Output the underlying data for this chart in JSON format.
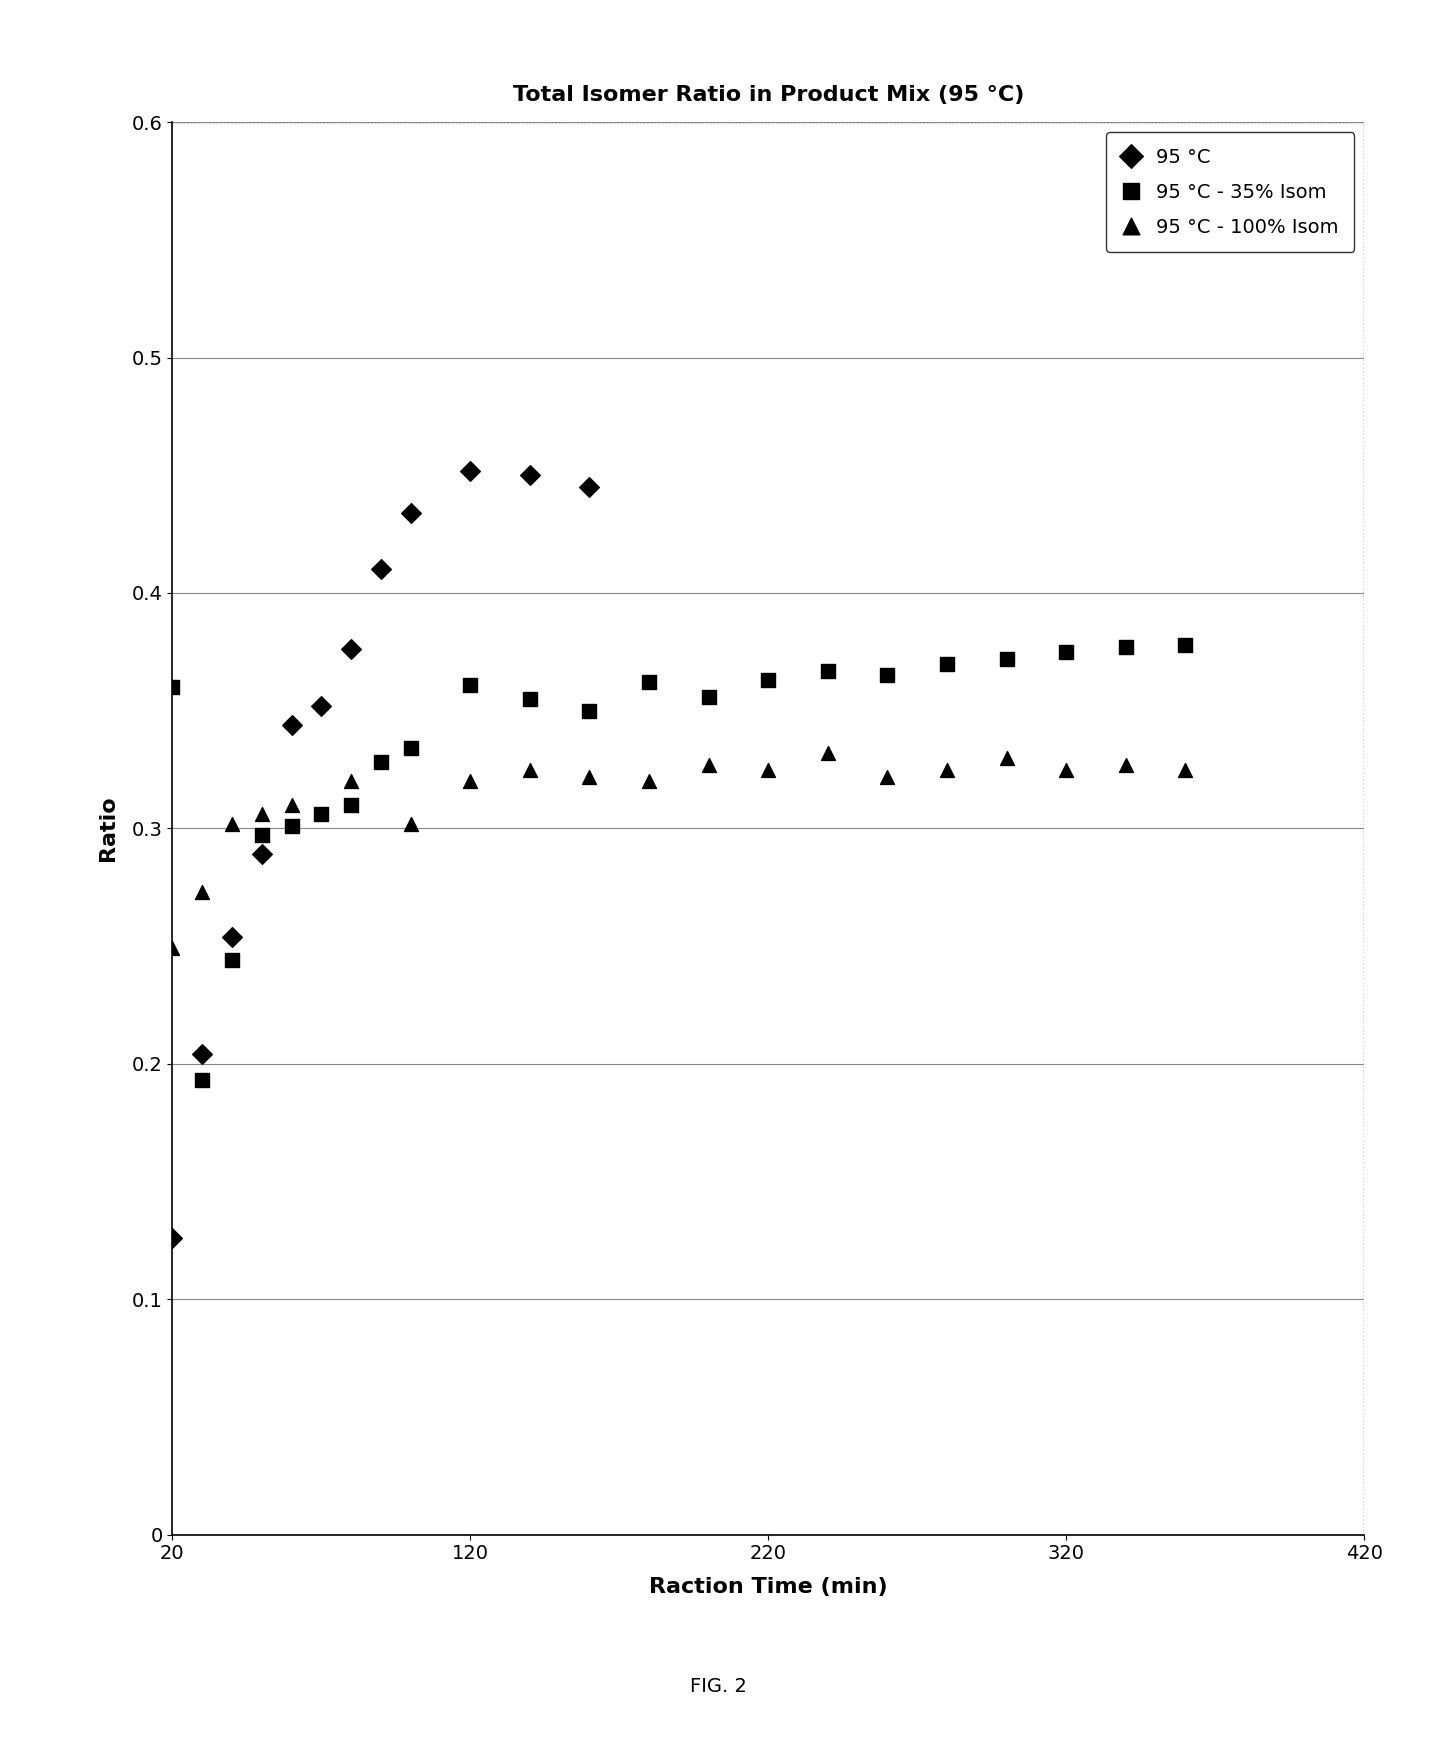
{
  "title": "Total Isomer Ratio in Product Mix (95 °C)",
  "xlabel": "Raction Time (min)",
  "ylabel": "Ratio",
  "fig_caption": "FIG. 2",
  "xlim": [
    20,
    420
  ],
  "ylim": [
    0,
    0.6
  ],
  "xticks": [
    20,
    120,
    220,
    320,
    420
  ],
  "yticks": [
    0,
    0.1,
    0.2,
    0.3,
    0.4,
    0.5,
    0.6
  ],
  "series1": {
    "label": "95 °C",
    "marker": "D",
    "x": [
      20,
      30,
      40,
      50,
      60,
      70,
      80,
      90,
      100,
      120,
      140,
      160
    ],
    "y": [
      0.126,
      0.204,
      0.254,
      0.289,
      0.344,
      0.352,
      0.376,
      0.41,
      0.434,
      0.452,
      0.45,
      0.445
    ]
  },
  "series2": {
    "label": "95 °C - 35% Isom",
    "marker": "s",
    "x": [
      20,
      30,
      40,
      50,
      60,
      70,
      80,
      90,
      100,
      120,
      140,
      160,
      180,
      200,
      220,
      240,
      260,
      280,
      300,
      320,
      340,
      360
    ],
    "y": [
      0.36,
      0.193,
      0.244,
      0.297,
      0.301,
      0.306,
      0.31,
      0.328,
      0.334,
      0.361,
      0.355,
      0.35,
      0.362,
      0.356,
      0.363,
      0.367,
      0.365,
      0.37,
      0.372,
      0.375,
      0.377,
      0.378
    ]
  },
  "series3": {
    "label": "95 °C - 100% Isom",
    "marker": "^",
    "x": [
      20,
      30,
      40,
      50,
      60,
      80,
      100,
      120,
      140,
      160,
      180,
      200,
      220,
      240,
      260,
      280,
      300,
      320,
      340,
      360
    ],
    "y": [
      0.249,
      0.273,
      0.302,
      0.306,
      0.31,
      0.32,
      0.302,
      0.32,
      0.325,
      0.322,
      0.32,
      0.327,
      0.325,
      0.332,
      0.322,
      0.325,
      0.33,
      0.325,
      0.327,
      0.325
    ]
  },
  "color": "#000000",
  "background": "#ffffff",
  "grid_color": "#888888",
  "marker_size": 10
}
